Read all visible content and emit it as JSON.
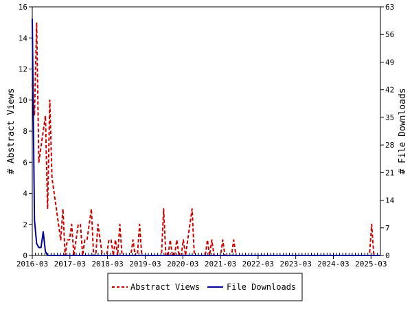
{
  "chart_data": {
    "type": "line",
    "y_left_label": "# Abstract Views",
    "y_right_label": "# File Downloads",
    "y_left_range": [
      0,
      16
    ],
    "y_right_range": [
      0,
      63
    ],
    "y_left_ticks": [
      "0",
      "2",
      "4",
      "6",
      "8",
      "10",
      "12",
      "14",
      "16"
    ],
    "y_right_ticks": [
      "0",
      "7",
      "14",
      "21",
      "28",
      "35",
      "42",
      "49",
      "56",
      "63"
    ],
    "x_tick_labels": [
      "2016-03",
      "2017-03",
      "2018-03",
      "2019-03",
      "2020-03",
      "2021-03",
      "2022-03",
      "2023-03",
      "2024-03",
      "2025-03"
    ],
    "x_start": "2016-03",
    "x_end": "2025-06",
    "series": [
      {
        "name": "Abstract Views",
        "axis": "left",
        "color": "#cc0000",
        "style": "dashed",
        "values": [
          11,
          9,
          15,
          6,
          7,
          8,
          9,
          3,
          10,
          5,
          4,
          3,
          2,
          1,
          3,
          0,
          1,
          1,
          2,
          0,
          1,
          2,
          2,
          0,
          1,
          1,
          2,
          3,
          0,
          0,
          2,
          1,
          0,
          0,
          0,
          1,
          1,
          0,
          1,
          0,
          2,
          0,
          0,
          0,
          0,
          0,
          1,
          0,
          0,
          2,
          0,
          0,
          0,
          0,
          0,
          0,
          0,
          0,
          0,
          0,
          3,
          0,
          0,
          1,
          0,
          0,
          1,
          0,
          0,
          1,
          0,
          1,
          2,
          3,
          0,
          0,
          0,
          0,
          0,
          0,
          1,
          0,
          1,
          0,
          0,
          0,
          0,
          1,
          0,
          0,
          0,
          0,
          1,
          0,
          0,
          0,
          0,
          0,
          0,
          0,
          0,
          0,
          0,
          0,
          0,
          0,
          0,
          0,
          0,
          0,
          0,
          0,
          0,
          0,
          0,
          0,
          0,
          0,
          0,
          0,
          0,
          0,
          0,
          0,
          0,
          0,
          0,
          0,
          0,
          0,
          0,
          0,
          0,
          0,
          0,
          0,
          0,
          0,
          0,
          0,
          0,
          0,
          0,
          0,
          0,
          0,
          0,
          0,
          0,
          0,
          0,
          0,
          0,
          0,
          0,
          2,
          0,
          0,
          0,
          0
        ]
      },
      {
        "name": "File Downloads",
        "axis": "right",
        "color": "#000099",
        "style": "solid",
        "values": [
          60,
          9,
          3,
          2,
          2,
          6,
          1,
          0,
          0,
          0,
          0,
          0,
          0,
          0,
          0,
          0,
          0,
          0,
          0,
          0,
          0,
          0,
          0,
          0,
          0,
          0,
          0,
          0,
          0,
          0,
          0,
          0,
          0,
          0,
          0,
          0,
          0,
          0,
          0,
          0,
          0,
          0,
          0,
          0,
          0,
          0,
          0,
          0,
          0,
          0,
          0,
          0,
          0,
          0,
          0,
          0,
          0,
          0,
          0,
          0,
          0,
          0,
          0,
          0,
          0,
          0,
          0,
          0,
          0,
          0,
          0,
          0,
          0,
          0,
          0,
          0,
          0,
          0,
          0,
          0,
          0,
          0,
          0,
          0,
          0,
          0,
          0,
          0,
          0,
          0,
          0,
          0,
          0,
          0,
          0,
          0,
          0,
          0,
          0,
          0,
          0,
          0,
          0,
          0,
          0,
          0,
          0,
          0,
          0,
          0,
          0,
          0,
          0,
          0,
          0,
          0,
          0,
          0,
          0,
          0,
          0,
          0,
          0,
          0,
          0,
          0,
          0,
          0,
          0,
          0,
          0,
          0,
          0,
          0,
          0,
          0,
          0,
          0,
          0,
          0,
          0,
          0,
          0,
          0,
          0,
          0,
          0,
          0,
          0,
          0,
          0,
          0,
          0,
          0,
          0,
          0,
          0,
          0,
          0,
          0
        ]
      }
    ],
    "legend": {
      "position": "bottom-center",
      "items": [
        "Abstract Views",
        "File Downloads"
      ]
    }
  }
}
